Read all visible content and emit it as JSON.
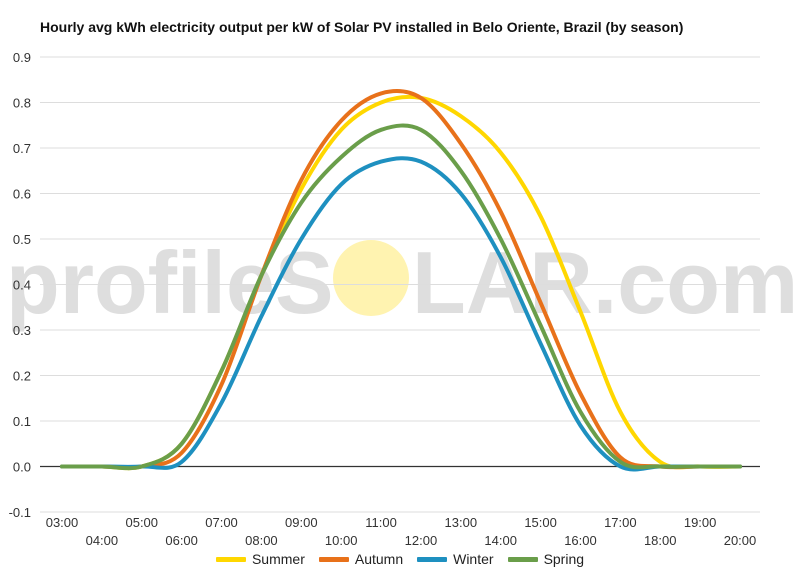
{
  "chart_data": {
    "type": "line",
    "title": "Hourly avg kWh electricity output per kW of Solar PV installed in Belo Oriente, Brazil (by season)",
    "xlabel": "",
    "ylabel": "",
    "x": [
      "03:00",
      "04:00",
      "05:00",
      "06:00",
      "07:00",
      "08:00",
      "09:00",
      "10:00",
      "11:00",
      "12:00",
      "13:00",
      "14:00",
      "15:00",
      "16:00",
      "17:00",
      "18:00",
      "19:00",
      "20:00"
    ],
    "ylim": [
      -0.1,
      0.9
    ],
    "yticks": [
      "-0.1",
      "0.0",
      "0.1",
      "0.2",
      "0.3",
      "0.4",
      "0.5",
      "0.6",
      "0.7",
      "0.8",
      "0.9"
    ],
    "grid": true,
    "legend_position": "bottom",
    "series": [
      {
        "name": "Summer",
        "color": "#FFD700",
        "values": [
          0.0,
          0.0,
          0.0,
          0.05,
          0.21,
          0.42,
          0.61,
          0.74,
          0.8,
          0.81,
          0.77,
          0.69,
          0.55,
          0.34,
          0.12,
          0.01,
          0.0,
          0.0
        ]
      },
      {
        "name": "Autumn",
        "color": "#E8711A",
        "values": [
          0.0,
          0.0,
          0.0,
          0.03,
          0.18,
          0.42,
          0.63,
          0.76,
          0.82,
          0.81,
          0.71,
          0.56,
          0.36,
          0.16,
          0.02,
          0.0,
          0.0,
          0.0
        ]
      },
      {
        "name": "Winter",
        "color": "#1E90C0",
        "values": [
          0.0,
          0.0,
          0.0,
          0.01,
          0.14,
          0.33,
          0.5,
          0.62,
          0.67,
          0.67,
          0.6,
          0.46,
          0.27,
          0.09,
          0.0,
          0.0,
          0.0,
          0.0
        ]
      },
      {
        "name": "Spring",
        "color": "#6A9E4A",
        "values": [
          0.0,
          0.0,
          0.0,
          0.05,
          0.21,
          0.42,
          0.58,
          0.68,
          0.74,
          0.74,
          0.65,
          0.5,
          0.31,
          0.12,
          0.01,
          0.0,
          0.0,
          0.0
        ]
      }
    ]
  },
  "watermark": {
    "text_left": "profileS",
    "text_right": "LAR.com",
    "sun_color": "#FFF3B0"
  }
}
